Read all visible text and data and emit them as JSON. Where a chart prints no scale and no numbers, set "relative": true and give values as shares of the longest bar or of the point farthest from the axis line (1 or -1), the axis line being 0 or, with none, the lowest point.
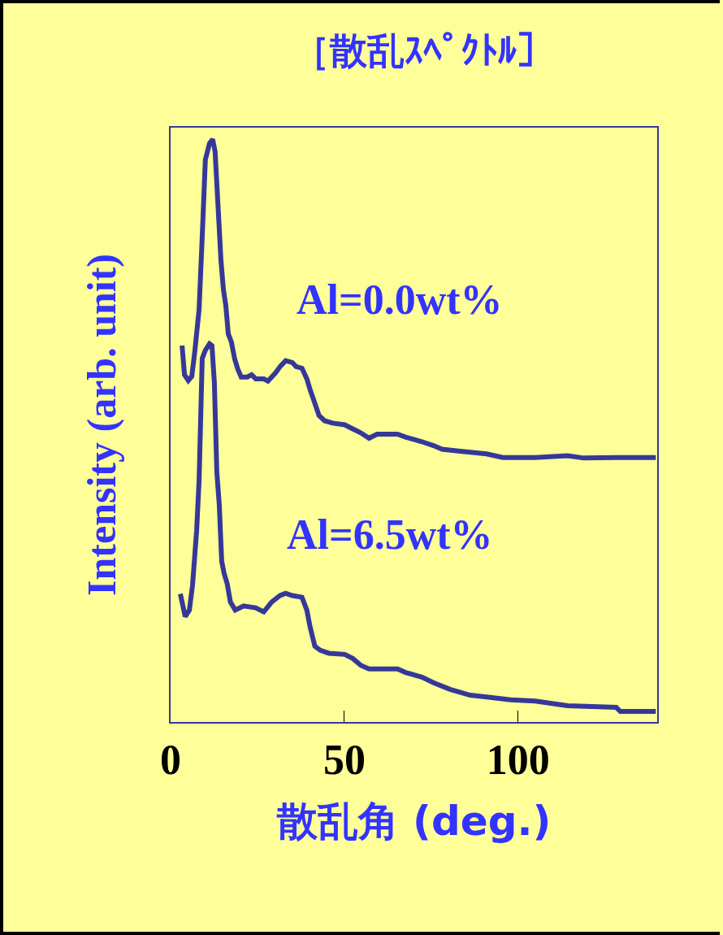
{
  "chart_data": {
    "type": "line",
    "title": "［散乱ｽﾍﾟｸﾄﾙ］",
    "xlabel": "散乱角 (deg.)",
    "ylabel": "Intensity (arb. unit)",
    "relative": true,
    "xlim": [
      0,
      140
    ],
    "xticks": [
      0,
      50,
      100
    ],
    "grid": false,
    "legend": false,
    "marker": "none",
    "line_style": "solid",
    "series": [
      {
        "name": "Al=0.0wt%",
        "color": "#363899",
        "x": [
          3.3,
          4.0,
          5.1,
          6.1,
          7.0,
          8.2,
          9.1,
          10.0,
          11.2,
          12.1,
          12.8,
          13.5,
          14.5,
          15.2,
          15.9,
          16.6,
          17.5,
          18.4,
          19.3,
          20.3,
          22.1,
          23.3,
          24.5,
          26.8,
          28.0,
          30.3,
          31.5,
          33.1,
          35.0,
          36.1,
          37.8,
          39.2,
          40.1,
          41.5,
          42.7,
          44.3,
          46.6,
          50.1,
          52.4,
          54.8,
          57.1,
          59.4,
          65.3,
          67.6,
          69.9,
          72.3,
          75.8,
          78.1,
          82.8,
          90.9,
          95.6,
          104.9,
          114.2,
          118.9,
          128.2,
          137.5,
          139.6
        ],
        "values": [
          0.646,
          0.596,
          0.586,
          0.593,
          0.638,
          0.708,
          0.833,
          0.965,
          0.993,
          1,
          0.979,
          0.902,
          0.791,
          0.742,
          0.714,
          0.666,
          0.652,
          0.624,
          0.606,
          0.592,
          0.592,
          0.596,
          0.589,
          0.589,
          0.585,
          0.6,
          0.61,
          0.62,
          0.617,
          0.61,
          0.607,
          0.589,
          0.571,
          0.547,
          0.526,
          0.517,
          0.513,
          0.51,
          0.503,
          0.496,
          0.487,
          0.494,
          0.494,
          0.489,
          0.485,
          0.481,
          0.474,
          0.468,
          0.465,
          0.46,
          0.454,
          0.454,
          0.457,
          0.453,
          0.454,
          0.454,
          0.454
        ]
      },
      {
        "name": "Al=6.5wt%",
        "color": "#363899",
        "x": [
          2.8,
          4.2,
          5.4,
          6.3,
          7.5,
          8.2,
          9.1,
          10.0,
          11.2,
          11.9,
          12.6,
          13.3,
          14.0,
          14.7,
          15.4,
          16.3,
          17.2,
          18.6,
          21.0,
          24.5,
          26.8,
          29.1,
          31.5,
          33.1,
          35.0,
          37.8,
          39.2,
          40.1,
          41.5,
          43.1,
          45.5,
          50.1,
          52.4,
          54.8,
          57.1,
          65.3,
          67.6,
          72.3,
          75.8,
          80.4,
          86.2,
          90.9,
          97.9,
          104.9,
          114.2,
          128.2,
          129.4,
          139.6
        ],
        "values": [
          0.22,
          0.181,
          0.192,
          0.234,
          0.329,
          0.415,
          0.624,
          0.638,
          0.649,
          0.646,
          0.582,
          0.429,
          0.373,
          0.276,
          0.255,
          0.237,
          0.206,
          0.192,
          0.199,
          0.196,
          0.189,
          0.206,
          0.217,
          0.221,
          0.217,
          0.214,
          0.192,
          0.164,
          0.13,
          0.123,
          0.118,
          0.116,
          0.109,
          0.097,
          0.091,
          0.091,
          0.085,
          0.077,
          0.067,
          0.056,
          0.046,
          0.043,
          0.038,
          0.036,
          0.028,
          0.025,
          0.018,
          0.018
        ]
      }
    ]
  }
}
